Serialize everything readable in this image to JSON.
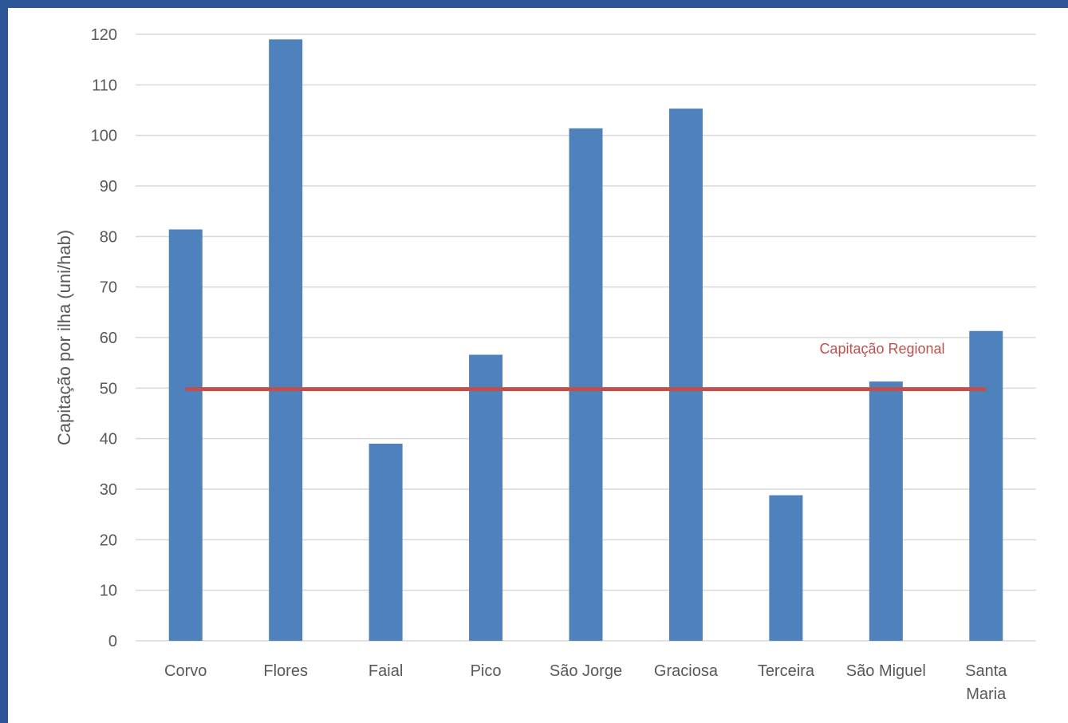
{
  "colors": {
    "frame": "#2E5597",
    "bar": "#4F81BD",
    "reference_line": "#C0504D",
    "gridline": "#D9D9D9",
    "text": "#595959"
  },
  "chart_data": {
    "type": "bar",
    "title": "",
    "xlabel": "",
    "ylabel": "Capitação por ilha (uni/hab)",
    "categories": [
      "Corvo",
      "Flores",
      "Faial",
      "Pico",
      "São Jorge",
      "Graciosa",
      "Terceira",
      "São Miguel",
      "Santa Maria"
    ],
    "category_lines": [
      [
        "Corvo"
      ],
      [
        "Flores"
      ],
      [
        "Faial"
      ],
      [
        "Pico"
      ],
      [
        "São Jorge"
      ],
      [
        "Graciosa"
      ],
      [
        "Terceira"
      ],
      [
        "São Miguel"
      ],
      [
        "Santa",
        "Maria"
      ]
    ],
    "values": [
      81.4,
      119.0,
      39.0,
      56.6,
      101.4,
      105.3,
      28.8,
      51.3,
      61.3
    ],
    "ylim": [
      0,
      120
    ],
    "yticks": [
      0,
      10,
      20,
      30,
      40,
      50,
      60,
      70,
      80,
      90,
      100,
      110,
      120
    ],
    "grid": true,
    "reference_line": {
      "label": "Capitação Regional",
      "value": 49.8
    }
  }
}
